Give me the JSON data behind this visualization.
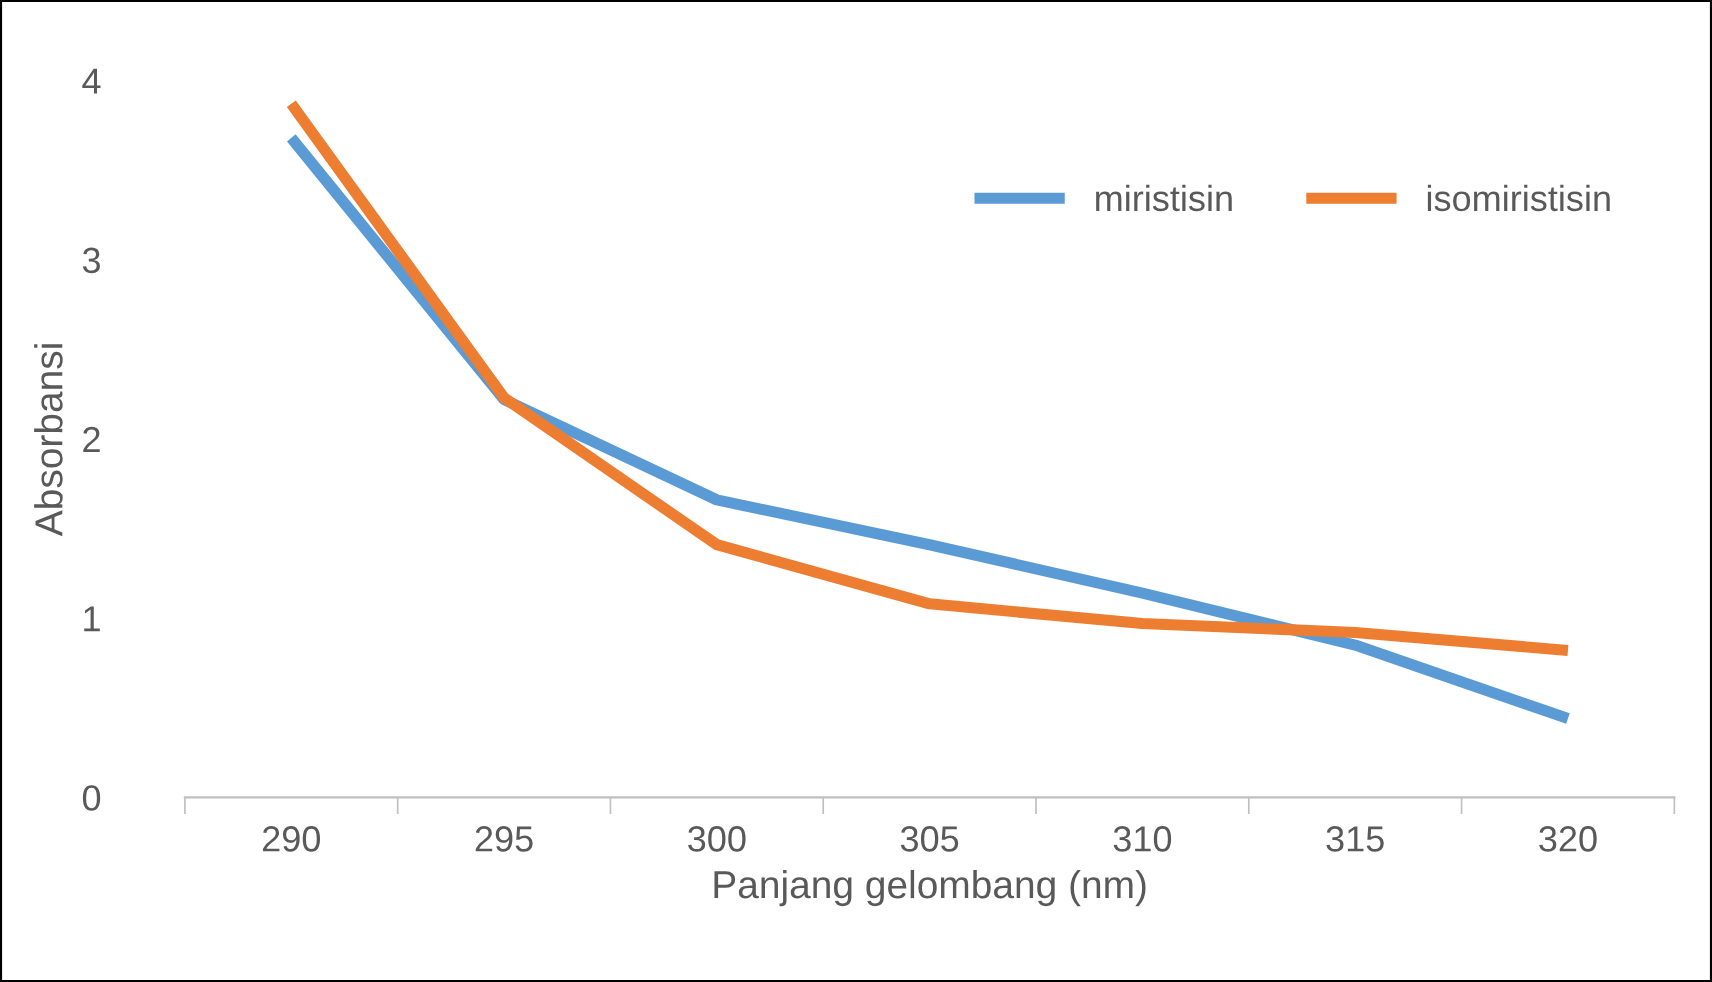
{
  "chart_data": {
    "type": "line",
    "xlabel": "Panjang gelombang (nm)",
    "ylabel": "Absorbansi",
    "categories": [
      "290",
      "295",
      "300",
      "305",
      "310",
      "315",
      "320"
    ],
    "series": [
      {
        "name": "miristisin",
        "color": "#5b9bd5",
        "values": [
          3.68,
          2.22,
          1.66,
          1.41,
          1.14,
          0.85,
          0.44
        ]
      },
      {
        "name": "isomiristisin",
        "color": "#ed7d31",
        "values": [
          3.87,
          2.23,
          1.41,
          1.08,
          0.97,
          0.92,
          0.82
        ]
      }
    ],
    "ylim": [
      0,
      4
    ],
    "yticks": [
      0,
      1,
      2,
      3,
      4
    ],
    "grid": false,
    "legend": "top right",
    "marker": "none",
    "line_style": "solid"
  }
}
